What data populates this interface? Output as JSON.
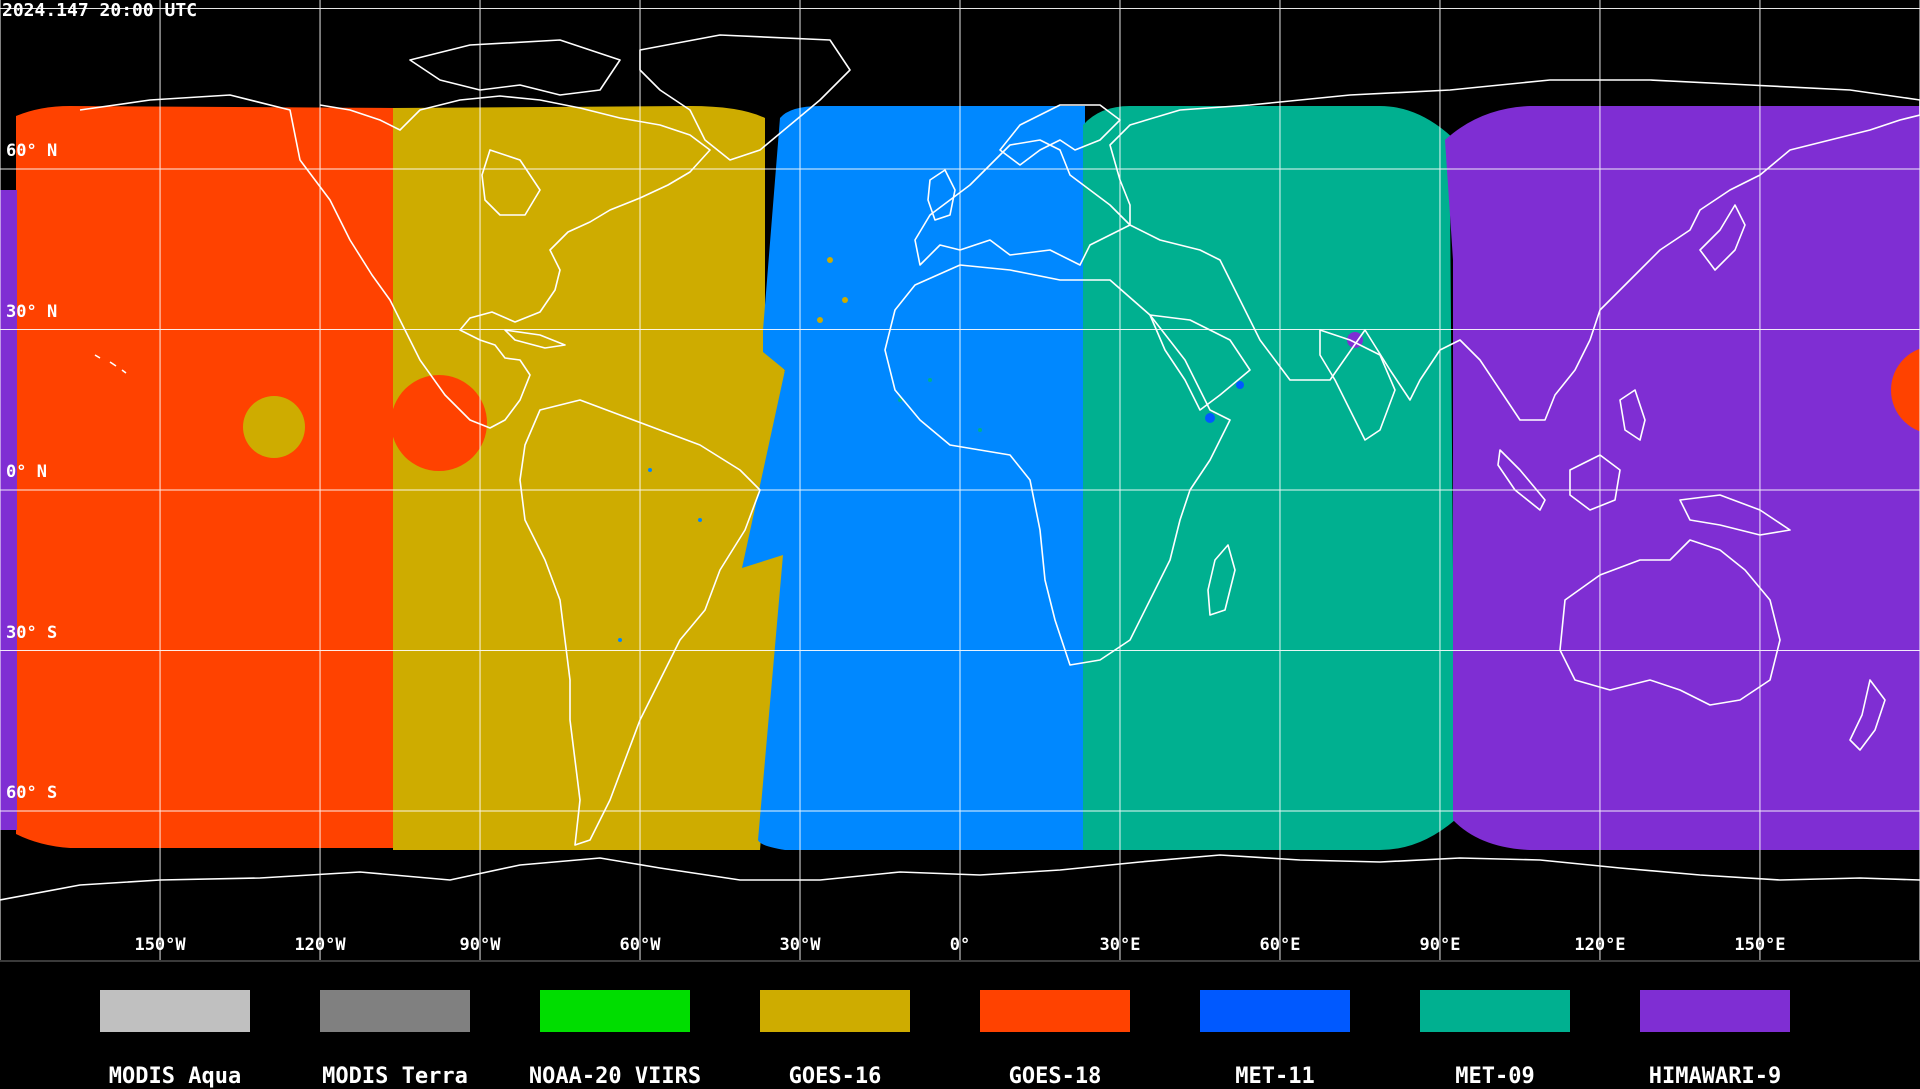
{
  "timestamp": "2024.147 20:00 UTC",
  "map": {
    "projection": "equirectangular",
    "background": "#000000",
    "grid_color": "#ffffff",
    "coastline_color": "#ffffff",
    "lat_labels": [
      {
        "lat": 60,
        "text": "60° N"
      },
      {
        "lat": 30,
        "text": "30° N"
      },
      {
        "lat": 0,
        "text": "0° N"
      },
      {
        "lat": -30,
        "text": "30° S"
      },
      {
        "lat": -60,
        "text": "60° S"
      }
    ],
    "lon_labels": [
      {
        "lon": -150,
        "text": "150°W"
      },
      {
        "lon": -120,
        "text": "120°W"
      },
      {
        "lon": -90,
        "text": "90°W"
      },
      {
        "lon": -60,
        "text": "60°W"
      },
      {
        "lon": -30,
        "text": "30°W"
      },
      {
        "lon": 0,
        "text": "0°"
      },
      {
        "lon": 30,
        "text": "30°E"
      },
      {
        "lon": 60,
        "text": "60°E"
      },
      {
        "lon": 90,
        "text": "90°E"
      },
      {
        "lon": 120,
        "text": "120°E"
      },
      {
        "lon": 150,
        "text": "150°E"
      }
    ],
    "coverage_regions": [
      {
        "satellite": "GOES-18",
        "lon_west": -177,
        "lon_east": -107
      },
      {
        "satellite": "GOES-16",
        "lon_west": -107,
        "lon_east": -38
      },
      {
        "satellite": "MET-11",
        "lon_west": -38,
        "lon_east": 23
      },
      {
        "satellite": "MET-09",
        "lon_west": 23,
        "lon_east": 92
      },
      {
        "satellite": "HIMAWARI-9",
        "lon_west": 92,
        "lon_east": 180
      }
    ]
  },
  "legend": [
    {
      "label": "MODIS Aqua",
      "color": "#c0c0c0"
    },
    {
      "label": "MODIS Terra",
      "color": "#808080"
    },
    {
      "label": "NOAA-20 VIIRS",
      "color": "#00dd00"
    },
    {
      "label": "GOES-16",
      "color": "#ceac00"
    },
    {
      "label": "GOES-18",
      "color": "#ff4200"
    },
    {
      "label": "MET-11",
      "color": "#0059ff"
    },
    {
      "label": "MET-09",
      "color": "#00b090"
    },
    {
      "label": "HIMAWARI-9",
      "color": "#7f2ed3"
    }
  ]
}
